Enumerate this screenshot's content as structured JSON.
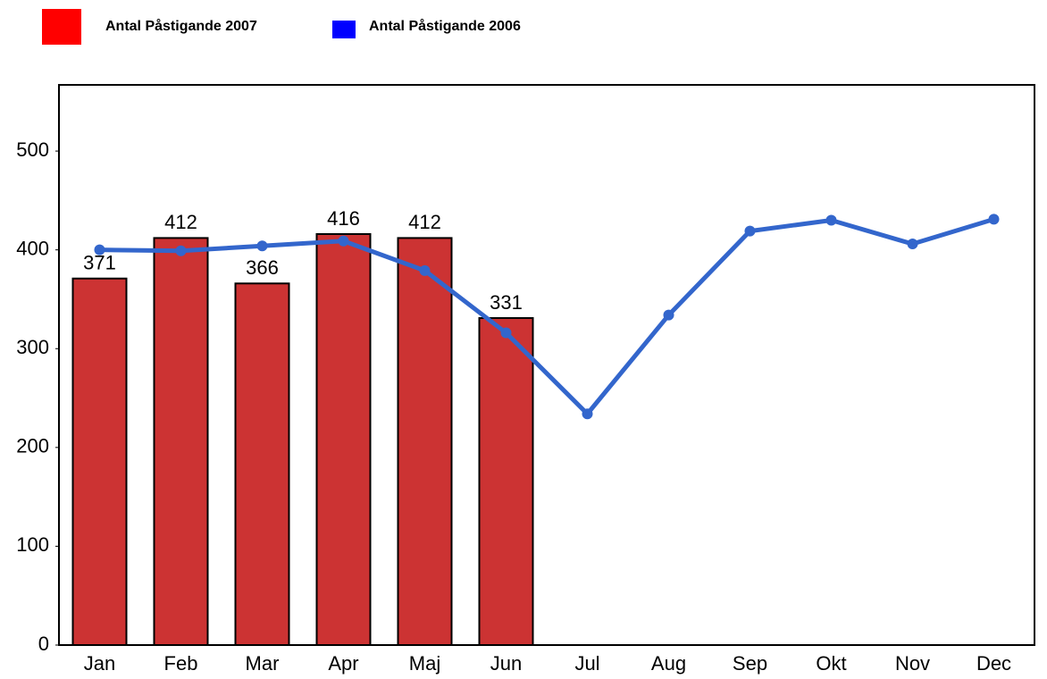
{
  "chart_data": {
    "type": "bar",
    "categories": [
      "Jan",
      "Feb",
      "Mar",
      "Apr",
      "Maj",
      "Jun",
      "Jul",
      "Aug",
      "Sep",
      "Okt",
      "Nov",
      "Dec"
    ],
    "series": [
      {
        "name": "Antal Påstigande 2007",
        "type": "bar",
        "color": "#cc3333",
        "legend_color": "#ff0000",
        "values": [
          371,
          412,
          366,
          416,
          412,
          331,
          null,
          null,
          null,
          null,
          null,
          null
        ]
      },
      {
        "name": "Antal Påstigande 2006",
        "type": "line",
        "color": "#3366cc",
        "legend_color": "#0000ff",
        "values": [
          400,
          399,
          404,
          409,
          379,
          316,
          234,
          334,
          419,
          430,
          406,
          431
        ]
      }
    ],
    "ylim": [
      0,
      567
    ],
    "yticks": [
      0,
      100,
      200,
      300,
      400,
      500
    ],
    "grid": false,
    "show_value_labels_series": 0
  }
}
